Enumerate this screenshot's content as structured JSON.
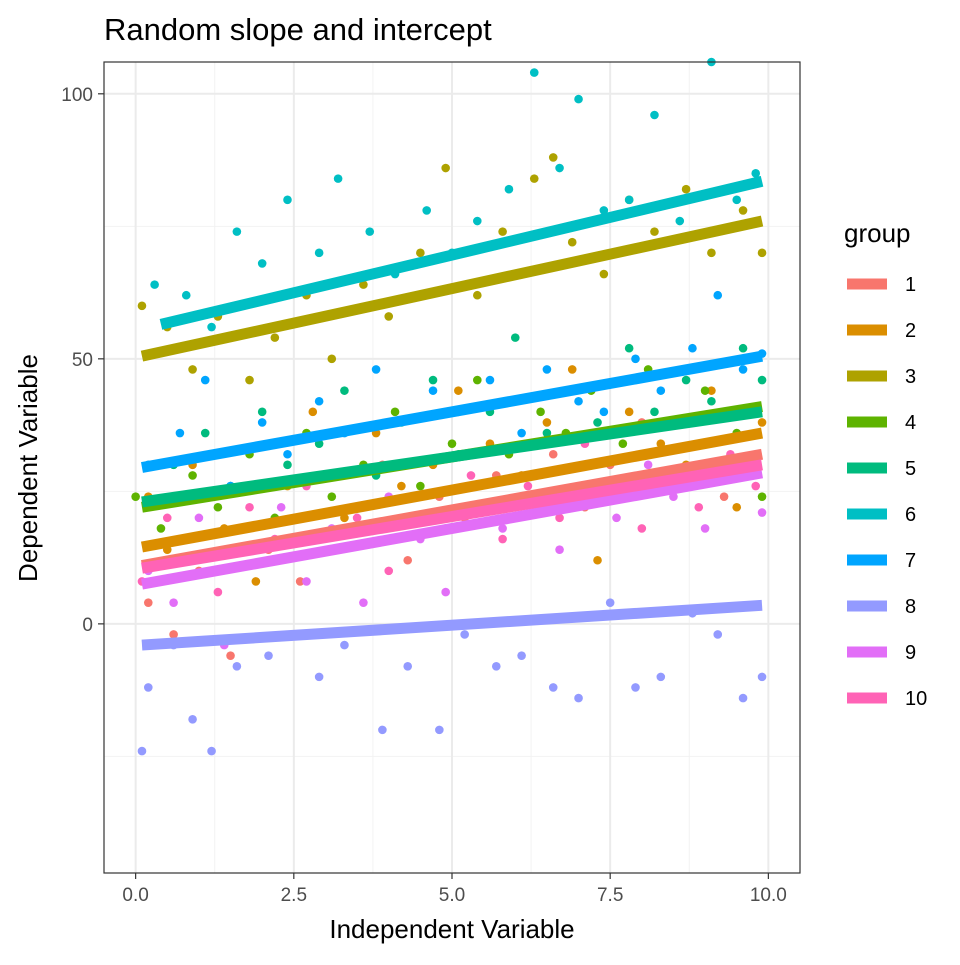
{
  "chart_data": {
    "type": "scatter",
    "title": "Random slope and intercept",
    "xlabel": "Independent Variable",
    "ylabel": "Dependent Variable",
    "xlim": [
      -0.5,
      10.5
    ],
    "ylim": [
      -47,
      106
    ],
    "x_ticks": [
      {
        "value": 0,
        "label": "0.0"
      },
      {
        "value": 2.5,
        "label": "2.5"
      },
      {
        "value": 5,
        "label": "5.0"
      },
      {
        "value": 7.5,
        "label": "7.5"
      },
      {
        "value": 10,
        "label": "10.0"
      }
    ],
    "y_ticks": [
      {
        "value": 0,
        "label": "0"
      },
      {
        "value": 50,
        "label": "50"
      },
      {
        "value": 100,
        "label": "100"
      }
    ],
    "grid": true,
    "legend": {
      "title": "group",
      "placement": "right"
    },
    "series": [
      {
        "name": "1",
        "color": "#F8766D",
        "fit": {
          "x": [
            0.1,
            9.9
          ],
          "y": [
            11,
            32
          ]
        },
        "points": [
          [
            0.2,
            4
          ],
          [
            0.6,
            -2
          ],
          [
            1.0,
            10
          ],
          [
            1.5,
            -6
          ],
          [
            2.1,
            14
          ],
          [
            2.6,
            8
          ],
          [
            3.0,
            28
          ],
          [
            3.4,
            18
          ],
          [
            3.9,
            30
          ],
          [
            4.3,
            12
          ],
          [
            4.8,
            24
          ],
          [
            5.2,
            20
          ],
          [
            5.7,
            28
          ],
          [
            6.2,
            24
          ],
          [
            6.6,
            32
          ],
          [
            7.1,
            22
          ],
          [
            7.5,
            30
          ],
          [
            8.0,
            38
          ],
          [
            8.4,
            26
          ],
          [
            8.9,
            34
          ],
          [
            9.3,
            24
          ],
          [
            9.6,
            40
          ],
          [
            9.8,
            30
          ]
        ]
      },
      {
        "name": "2",
        "color": "#DB8E00",
        "fit": {
          "x": [
            0.1,
            9.9
          ],
          "y": [
            14.5,
            36
          ]
        },
        "points": [
          [
            0.2,
            24
          ],
          [
            0.5,
            14
          ],
          [
            0.9,
            30
          ],
          [
            1.4,
            18
          ],
          [
            1.9,
            8
          ],
          [
            2.4,
            26
          ],
          [
            2.8,
            40
          ],
          [
            3.3,
            20
          ],
          [
            3.8,
            36
          ],
          [
            4.2,
            26
          ],
          [
            4.7,
            30
          ],
          [
            5.1,
            44
          ],
          [
            5.6,
            34
          ],
          [
            6.1,
            28
          ],
          [
            6.5,
            38
          ],
          [
            6.9,
            48
          ],
          [
            7.3,
            12
          ],
          [
            7.8,
            40
          ],
          [
            8.3,
            34
          ],
          [
            8.7,
            30
          ],
          [
            9.1,
            44
          ],
          [
            9.5,
            22
          ],
          [
            9.9,
            38
          ]
        ]
      },
      {
        "name": "3",
        "color": "#AEA200",
        "fit": {
          "x": [
            0.1,
            9.9
          ],
          "y": [
            50.5,
            76
          ]
        },
        "points": [
          [
            0.1,
            60
          ],
          [
            0.5,
            56
          ],
          [
            0.9,
            48
          ],
          [
            1.3,
            58
          ],
          [
            1.8,
            46
          ],
          [
            2.2,
            54
          ],
          [
            2.7,
            62
          ],
          [
            3.1,
            50
          ],
          [
            3.6,
            64
          ],
          [
            4.0,
            58
          ],
          [
            4.5,
            70
          ],
          [
            4.9,
            86
          ],
          [
            5.4,
            62
          ],
          [
            5.8,
            74
          ],
          [
            6.3,
            84
          ],
          [
            6.6,
            88
          ],
          [
            6.9,
            72
          ],
          [
            7.4,
            66
          ],
          [
            7.8,
            80
          ],
          [
            8.2,
            74
          ],
          [
            8.7,
            82
          ],
          [
            9.1,
            70
          ],
          [
            9.6,
            78
          ],
          [
            9.9,
            70
          ]
        ]
      },
      {
        "name": "4",
        "color": "#5EB300",
        "fit": {
          "x": [
            0.1,
            9.9
          ],
          "y": [
            22,
            41
          ]
        },
        "points": [
          [
            0.0,
            24
          ],
          [
            0.4,
            18
          ],
          [
            0.9,
            28
          ],
          [
            1.3,
            22
          ],
          [
            1.8,
            32
          ],
          [
            2.2,
            20
          ],
          [
            2.7,
            36
          ],
          [
            3.1,
            24
          ],
          [
            3.6,
            30
          ],
          [
            4.1,
            40
          ],
          [
            4.5,
            26
          ],
          [
            5.0,
            34
          ],
          [
            5.4,
            46
          ],
          [
            5.9,
            32
          ],
          [
            6.4,
            40
          ],
          [
            6.8,
            36
          ],
          [
            7.2,
            44
          ],
          [
            7.7,
            34
          ],
          [
            8.1,
            48
          ],
          [
            8.6,
            38
          ],
          [
            9.0,
            44
          ],
          [
            9.5,
            36
          ],
          [
            9.9,
            24
          ]
        ]
      },
      {
        "name": "5",
        "color": "#00BB7E",
        "fit": {
          "x": [
            0.1,
            9.9
          ],
          "y": [
            23,
            40
          ]
        },
        "points": [
          [
            0.2,
            22
          ],
          [
            0.6,
            30
          ],
          [
            1.1,
            36
          ],
          [
            1.5,
            26
          ],
          [
            2.0,
            40
          ],
          [
            2.4,
            30
          ],
          [
            2.9,
            34
          ],
          [
            3.3,
            44
          ],
          [
            3.8,
            28
          ],
          [
            4.2,
            38
          ],
          [
            4.7,
            46
          ],
          [
            5.1,
            32
          ],
          [
            5.6,
            40
          ],
          [
            6.0,
            54
          ],
          [
            6.5,
            36
          ],
          [
            6.9,
            44
          ],
          [
            7.3,
            38
          ],
          [
            7.8,
            52
          ],
          [
            8.2,
            40
          ],
          [
            8.7,
            46
          ],
          [
            9.1,
            42
          ],
          [
            9.6,
            52
          ],
          [
            9.9,
            46
          ]
        ]
      },
      {
        "name": "6",
        "color": "#00BFC4",
        "fit": {
          "x": [
            0.4,
            9.9
          ],
          "y": [
            56.5,
            83.5
          ]
        },
        "points": [
          [
            0.3,
            64
          ],
          [
            0.8,
            62
          ],
          [
            1.2,
            56
          ],
          [
            1.6,
            74
          ],
          [
            2.0,
            68
          ],
          [
            2.4,
            80
          ],
          [
            2.9,
            70
          ],
          [
            3.2,
            84
          ],
          [
            3.7,
            74
          ],
          [
            4.1,
            66
          ],
          [
            4.6,
            78
          ],
          [
            5.0,
            70
          ],
          [
            5.4,
            76
          ],
          [
            5.9,
            82
          ],
          [
            6.3,
            104
          ],
          [
            6.7,
            86
          ],
          [
            7.0,
            99
          ],
          [
            7.4,
            78
          ],
          [
            7.8,
            80
          ],
          [
            8.2,
            96
          ],
          [
            8.6,
            76
          ],
          [
            9.1,
            106
          ],
          [
            9.5,
            80
          ],
          [
            9.8,
            85
          ]
        ]
      },
      {
        "name": "7",
        "color": "#00A5FF",
        "fit": {
          "x": [
            0.1,
            9.9
          ],
          "y": [
            29.5,
            50.5
          ]
        },
        "points": [
          [
            0.2,
            30
          ],
          [
            0.7,
            36
          ],
          [
            1.1,
            46
          ],
          [
            1.5,
            26
          ],
          [
            2.0,
            38
          ],
          [
            2.4,
            32
          ],
          [
            2.9,
            42
          ],
          [
            3.3,
            36
          ],
          [
            3.8,
            48
          ],
          [
            4.2,
            30
          ],
          [
            4.7,
            44
          ],
          [
            5.1,
            40
          ],
          [
            5.6,
            46
          ],
          [
            6.1,
            36
          ],
          [
            6.5,
            48
          ],
          [
            7.0,
            42
          ],
          [
            7.4,
            40
          ],
          [
            7.9,
            50
          ],
          [
            8.3,
            44
          ],
          [
            8.8,
            52
          ],
          [
            9.2,
            62
          ],
          [
            9.6,
            48
          ],
          [
            9.9,
            51
          ]
        ]
      },
      {
        "name": "8",
        "color": "#939AFF",
        "fit": {
          "x": [
            0.1,
            9.9
          ],
          "y": [
            -4,
            3.5
          ]
        },
        "points": [
          [
            0.1,
            -24
          ],
          [
            0.2,
            -12
          ],
          [
            0.6,
            -4
          ],
          [
            0.9,
            -18
          ],
          [
            1.2,
            -24
          ],
          [
            1.6,
            -8
          ],
          [
            2.1,
            -6
          ],
          [
            2.5,
            -2
          ],
          [
            2.9,
            -10
          ],
          [
            3.3,
            -4
          ],
          [
            3.9,
            -20
          ],
          [
            4.3,
            -8
          ],
          [
            4.8,
            -20
          ],
          [
            5.2,
            -2
          ],
          [
            5.7,
            -8
          ],
          [
            6.1,
            -6
          ],
          [
            6.6,
            -12
          ],
          [
            7.0,
            -14
          ],
          [
            7.5,
            4
          ],
          [
            7.9,
            -12
          ],
          [
            8.3,
            -10
          ],
          [
            8.8,
            2
          ],
          [
            9.2,
            -2
          ],
          [
            9.6,
            -14
          ],
          [
            9.9,
            -10
          ]
        ]
      },
      {
        "name": "9",
        "color": "#E26EF7",
        "fit": {
          "x": [
            0.1,
            9.9
          ],
          "y": [
            7.5,
            28.5
          ]
        },
        "points": [
          [
            0.2,
            10
          ],
          [
            0.6,
            4
          ],
          [
            1.0,
            20
          ],
          [
            1.4,
            -4
          ],
          [
            1.8,
            14
          ],
          [
            2.3,
            22
          ],
          [
            2.7,
            8
          ],
          [
            3.1,
            18
          ],
          [
            3.6,
            4
          ],
          [
            4.0,
            24
          ],
          [
            4.5,
            16
          ],
          [
            4.9,
            6
          ],
          [
            5.4,
            22
          ],
          [
            5.8,
            18
          ],
          [
            6.3,
            28
          ],
          [
            6.7,
            14
          ],
          [
            7.2,
            26
          ],
          [
            7.6,
            20
          ],
          [
            8.1,
            30
          ],
          [
            8.5,
            24
          ],
          [
            9.0,
            18
          ],
          [
            9.4,
            28
          ],
          [
            9.9,
            21
          ]
        ]
      },
      {
        "name": "10",
        "color": "#FF63B6",
        "fit": {
          "x": [
            0.1,
            9.9
          ],
          "y": [
            10.5,
            30
          ]
        },
        "points": [
          [
            0.1,
            8
          ],
          [
            0.5,
            20
          ],
          [
            0.9,
            12
          ],
          [
            1.3,
            6
          ],
          [
            1.8,
            22
          ],
          [
            2.2,
            16
          ],
          [
            2.7,
            26
          ],
          [
            3.1,
            14
          ],
          [
            3.5,
            20
          ],
          [
            4.0,
            10
          ],
          [
            4.4,
            24
          ],
          [
            4.9,
            18
          ],
          [
            5.3,
            28
          ],
          [
            5.8,
            16
          ],
          [
            6.2,
            26
          ],
          [
            6.7,
            20
          ],
          [
            7.1,
            34
          ],
          [
            7.6,
            24
          ],
          [
            8.0,
            18
          ],
          [
            8.5,
            28
          ],
          [
            8.9,
            22
          ],
          [
            9.4,
            32
          ],
          [
            9.8,
            26
          ]
        ]
      }
    ]
  }
}
